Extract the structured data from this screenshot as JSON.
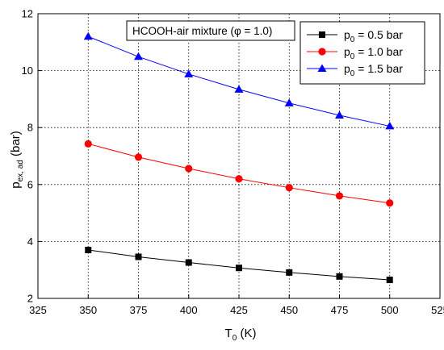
{
  "chart_data": {
    "type": "line",
    "annotation": {
      "prefix": "HCOOH-air mixture (",
      "symbol": "φ",
      "suffix": " = 1.0)"
    },
    "xlabel": {
      "main": "T",
      "sub": "0",
      "unit": " (K)"
    },
    "ylabel": {
      "main": "p",
      "sub": "ex, ad",
      "unit": " (bar)"
    },
    "xlim": [
      325,
      525
    ],
    "ylim": [
      2,
      12
    ],
    "x_ticks": [
      325,
      350,
      375,
      400,
      425,
      450,
      475,
      500,
      525
    ],
    "y_ticks": [
      2,
      4,
      6,
      8,
      10,
      12
    ],
    "grid": true,
    "legend_position": "top-right",
    "x": [
      350,
      375,
      400,
      425,
      450,
      475,
      500
    ],
    "series": [
      {
        "name": "p0 = 0.5 bar",
        "label_main": "p",
        "label_sub": "0",
        "label_rest": " = 0.5 bar",
        "marker": "square",
        "color": "#000000",
        "line_color": "#000000",
        "values": [
          3.7,
          3.46,
          3.26,
          3.07,
          2.91,
          2.77,
          2.65
        ]
      },
      {
        "name": "p0 = 1.0 bar",
        "label_main": "p",
        "label_sub": "0",
        "label_rest": " = 1.0 bar",
        "marker": "circle",
        "color": "#ff0000",
        "line_color": "#ff0000",
        "values": [
          7.43,
          6.96,
          6.56,
          6.2,
          5.89,
          5.6,
          5.35
        ]
      },
      {
        "name": "p0 = 1.5 bar",
        "label_main": "p",
        "label_sub": "0",
        "label_rest": " = 1.5 bar",
        "marker": "triangle",
        "color": "#0000ff",
        "line_color": "#0000ff",
        "values": [
          11.2,
          10.49,
          9.88,
          9.34,
          8.86,
          8.43,
          8.05
        ]
      }
    ]
  }
}
